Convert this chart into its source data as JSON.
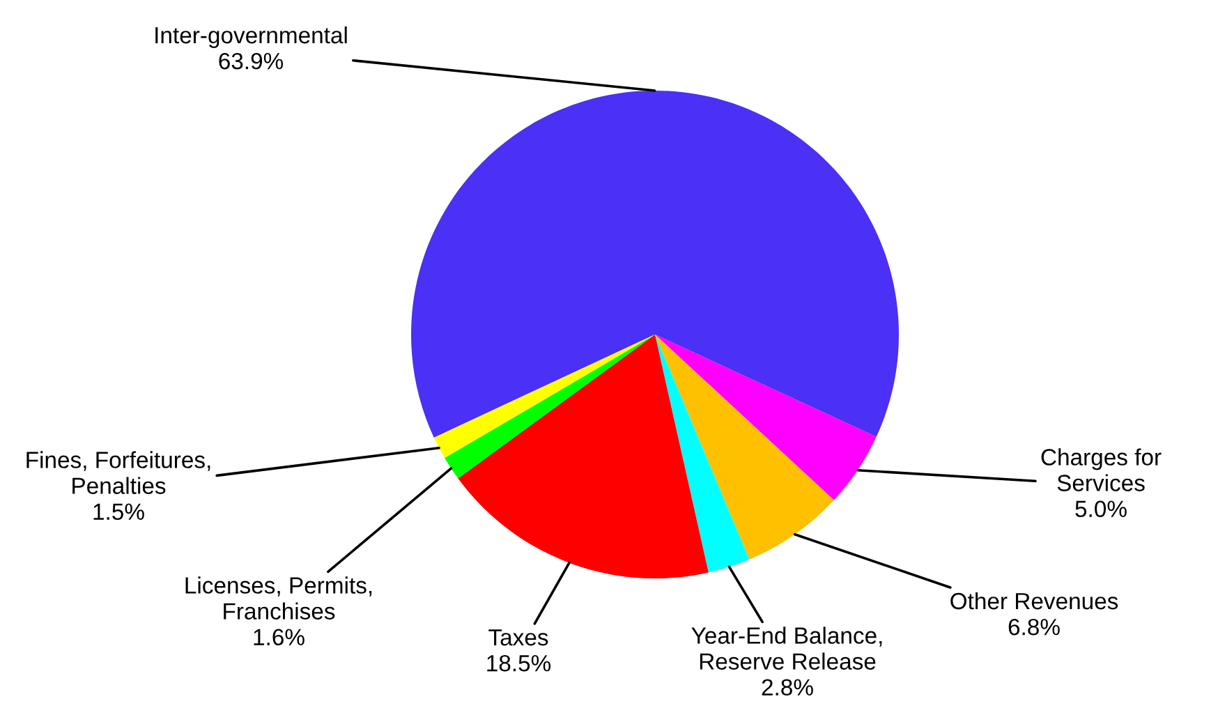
{
  "chart_data": {
    "type": "pie",
    "categories": [
      "Inter-governmental",
      "Charges for\nServices",
      "Other Revenues",
      "Year-End Balance,\nReserve Release",
      "Taxes",
      "Licenses, Permits,\nFranchises",
      "Fines, Forfeitures,\nPenalties"
    ],
    "values": [
      63.9,
      5.0,
      6.8,
      2.8,
      18.5,
      1.6,
      1.5
    ],
    "value_labels": [
      "63.9%",
      "5.0%",
      "6.8%",
      "2.8%",
      "18.5%",
      "1.6%",
      "1.5%"
    ],
    "colors": [
      "#4b30f5",
      "#ff00ff",
      "#ffc000",
      "#00ffff",
      "#ff0000",
      "#00ff00",
      "#ffff00"
    ]
  }
}
